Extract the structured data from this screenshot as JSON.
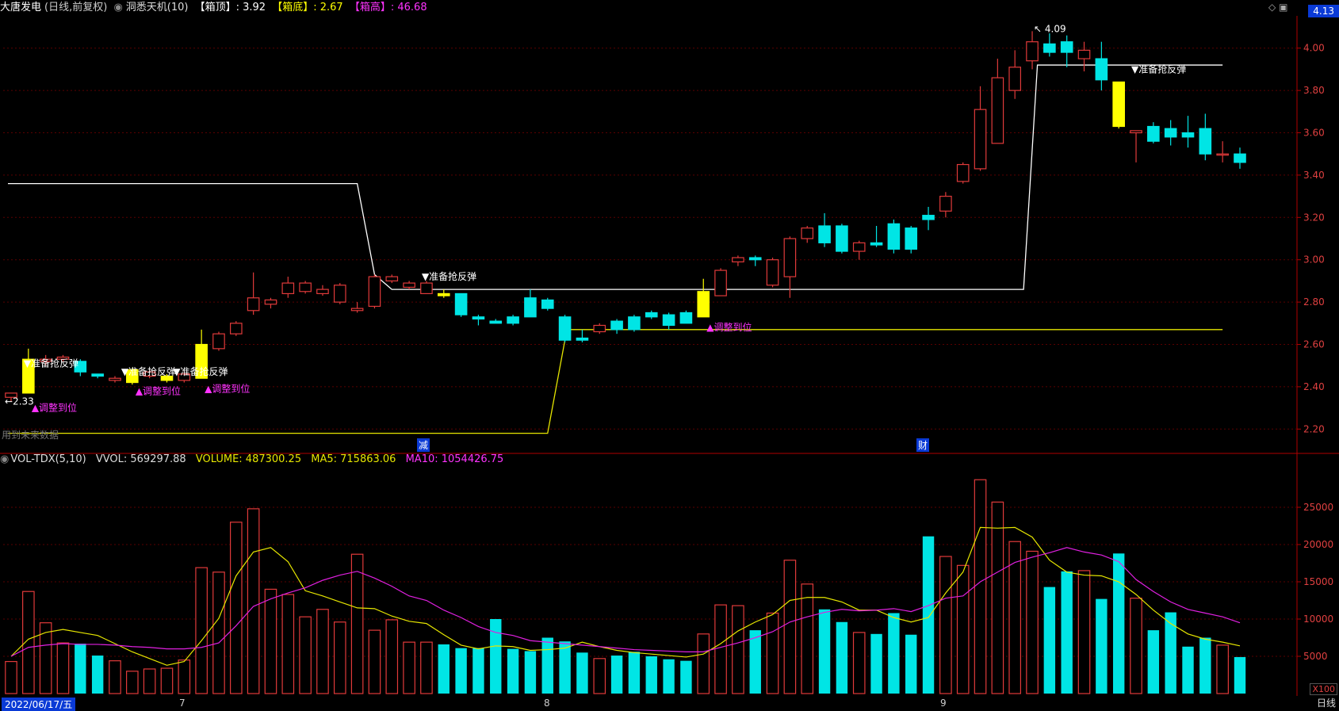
{
  "header": {
    "stock": "大唐发电",
    "mode": "(日线,前复权)",
    "indicator": "洞悉天机(10)",
    "box_top_label": "【箱顶】",
    "box_top_value": ": 3.92",
    "box_bottom_label": "【箱底】",
    "box_bottom_value": ": 2.67",
    "box_height_label": "【箱高】",
    "box_height_value": ": 46.68",
    "top_right_price": "4.13"
  },
  "volume_header": {
    "name": "VOL-TDX(5,10)",
    "vvol": "VVOL: 569297.88",
    "volume": "VOLUME: 487300.25",
    "ma5": "MA5: 715863.06",
    "ma10": "MA10: 1054426.75"
  },
  "footer": {
    "date": "2022/06/17/五",
    "month_7": "7",
    "month_8": "8",
    "month_9": "9",
    "period": "日线",
    "multiplier": "X100",
    "future_note": "用到未来数据",
    "event_1": "减",
    "event_2": "财"
  },
  "colors": {
    "up": "#e03a3a",
    "down": "#00e5e5",
    "signal": "#ffff00",
    "box_line": "#ffffff",
    "bottom_line": "#e6e600",
    "ma5": "#e6e600",
    "ma10": "#e020e0",
    "label_magenta": "#ff33ff",
    "grid": "#5a0000"
  },
  "chart_data": {
    "type": "candlestick",
    "price_axis": {
      "ticks": [
        2.2,
        2.4,
        2.6,
        2.8,
        3.0,
        3.2,
        3.4,
        3.6,
        3.8,
        4.0
      ],
      "ylim": [
        2.13,
        4.13
      ]
    },
    "volume_axis": {
      "ticks": [
        5000,
        10000,
        15000,
        20000,
        25000
      ],
      "ylim": [
        0,
        30000
      ]
    },
    "annotations": {
      "high_label": "4.09",
      "low_label": "2.33",
      "rebound": "▼准备抢反弹",
      "adjust": "▲调整到位"
    },
    "candles": [
      [
        2.35,
        2.37,
        2.33,
        2.37,
        4300,
        0
      ],
      [
        2.37,
        2.53,
        2.37,
        2.58,
        13700,
        1
      ],
      [
        2.52,
        2.53,
        2.5,
        2.55,
        9500,
        0
      ],
      [
        2.53,
        2.54,
        2.52,
        2.55,
        6800,
        0
      ],
      [
        2.52,
        2.47,
        2.45,
        2.53,
        6700,
        0
      ],
      [
        2.46,
        2.45,
        2.44,
        2.46,
        5100,
        0
      ],
      [
        2.43,
        2.44,
        2.42,
        2.45,
        4400,
        1
      ],
      [
        2.42,
        2.48,
        2.41,
        2.49,
        3000,
        1
      ],
      [
        2.45,
        2.47,
        2.44,
        2.48,
        3300,
        0
      ],
      [
        2.43,
        2.45,
        2.42,
        2.46,
        3400,
        1
      ],
      [
        2.43,
        2.46,
        2.42,
        2.47,
        4500,
        0
      ],
      [
        2.44,
        2.6,
        2.44,
        2.67,
        16900,
        1
      ],
      [
        2.58,
        2.65,
        2.57,
        2.66,
        16300,
        1
      ],
      [
        2.65,
        2.7,
        2.64,
        2.71,
        23000,
        1
      ],
      [
        2.76,
        2.82,
        2.74,
        2.94,
        24800,
        1
      ],
      [
        2.79,
        2.81,
        2.77,
        2.82,
        14000,
        0
      ],
      [
        2.84,
        2.89,
        2.82,
        2.92,
        13300,
        0
      ],
      [
        2.85,
        2.89,
        2.84,
        2.9,
        10300,
        1
      ],
      [
        2.84,
        2.86,
        2.83,
        2.88,
        11300,
        0
      ],
      [
        2.8,
        2.88,
        2.79,
        2.89,
        9600,
        0
      ],
      [
        2.76,
        2.77,
        2.75,
        2.8,
        18700,
        1
      ],
      [
        2.78,
        2.92,
        2.77,
        2.93,
        8500,
        1
      ],
      [
        2.9,
        2.92,
        2.89,
        2.93,
        9900,
        0
      ],
      [
        2.87,
        2.89,
        2.86,
        2.9,
        6900,
        0
      ],
      [
        2.84,
        2.89,
        2.84,
        2.9,
        6900,
        1
      ],
      [
        2.84,
        2.83,
        2.82,
        2.86,
        6600,
        1
      ],
      [
        2.84,
        2.74,
        2.73,
        2.84,
        6100,
        0
      ],
      [
        2.73,
        2.72,
        2.69,
        2.74,
        6100,
        0
      ],
      [
        2.71,
        2.7,
        2.7,
        2.72,
        10000,
        1
      ],
      [
        2.73,
        2.7,
        2.69,
        2.74,
        6000,
        0
      ],
      [
        2.82,
        2.73,
        2.73,
        2.86,
        5700,
        0
      ],
      [
        2.81,
        2.77,
        2.76,
        2.82,
        7500,
        0
      ],
      [
        2.73,
        2.62,
        2.61,
        2.74,
        7000,
        0
      ],
      [
        2.63,
        2.62,
        2.61,
        2.67,
        5500,
        0
      ],
      [
        2.66,
        2.69,
        2.65,
        2.7,
        4700,
        0
      ],
      [
        2.71,
        2.67,
        2.65,
        2.72,
        5100,
        0
      ],
      [
        2.73,
        2.67,
        2.66,
        2.74,
        5600,
        0
      ],
      [
        2.75,
        2.73,
        2.72,
        2.76,
        5000,
        0
      ],
      [
        2.74,
        2.69,
        2.67,
        2.75,
        4600,
        0
      ],
      [
        2.75,
        2.7,
        2.7,
        2.76,
        4400,
        1
      ],
      [
        2.73,
        2.85,
        2.73,
        2.91,
        8000,
        1
      ],
      [
        2.83,
        2.95,
        2.83,
        2.96,
        11900,
        1
      ],
      [
        2.99,
        3.01,
        2.97,
        3.02,
        11800,
        1
      ],
      [
        3.01,
        3.0,
        2.97,
        3.02,
        8500,
        0
      ],
      [
        2.88,
        3.0,
        2.87,
        3.01,
        10800,
        1
      ],
      [
        2.92,
        3.1,
        2.82,
        3.11,
        17900,
        1
      ],
      [
        3.1,
        3.15,
        3.08,
        3.16,
        14700,
        0
      ],
      [
        3.16,
        3.08,
        3.06,
        3.22,
        11300,
        1
      ],
      [
        3.16,
        3.04,
        3.03,
        3.17,
        9600,
        1
      ],
      [
        3.04,
        3.08,
        3.0,
        3.09,
        8200,
        1
      ],
      [
        3.08,
        3.07,
        3.06,
        3.16,
        8000,
        0
      ],
      [
        3.17,
        3.05,
        3.03,
        3.19,
        10800,
        1
      ],
      [
        3.15,
        3.05,
        3.03,
        3.16,
        7900,
        0
      ],
      [
        3.21,
        3.19,
        3.14,
        3.25,
        21100,
        1
      ],
      [
        3.23,
        3.3,
        3.2,
        3.32,
        18400,
        1
      ],
      [
        3.37,
        3.45,
        3.36,
        3.46,
        17200,
        1
      ],
      [
        3.43,
        3.71,
        3.42,
        3.82,
        28700,
        1
      ],
      [
        3.55,
        3.86,
        3.56,
        3.95,
        25700,
        1
      ],
      [
        3.8,
        3.91,
        3.76,
        3.99,
        20400,
        1
      ],
      [
        3.94,
        4.03,
        3.9,
        4.08,
        19100,
        1
      ],
      [
        4.02,
        3.98,
        3.96,
        4.07,
        14300,
        0
      ],
      [
        4.03,
        3.98,
        3.91,
        4.06,
        16400,
        0
      ],
      [
        3.95,
        3.99,
        3.89,
        4.03,
        16500,
        1
      ],
      [
        3.95,
        3.85,
        3.8,
        4.03,
        12700,
        1
      ],
      [
        3.84,
        3.63,
        3.62,
        3.84,
        18800,
        0
      ],
      [
        3.6,
        3.61,
        3.46,
        3.61,
        12800,
        0
      ],
      [
        3.63,
        3.56,
        3.55,
        3.65,
        8500,
        0
      ],
      [
        3.62,
        3.58,
        3.54,
        3.66,
        10900,
        0
      ],
      [
        3.6,
        3.58,
        3.53,
        3.68,
        6300,
        0
      ],
      [
        3.62,
        3.5,
        3.47,
        3.69,
        7500,
        0
      ],
      [
        3.5,
        3.5,
        3.46,
        3.56,
        6500,
        0
      ],
      [
        3.5,
        3.46,
        3.43,
        3.53,
        4900,
        0
      ]
    ],
    "signal_bars": [
      1,
      7,
      9,
      11,
      25,
      40,
      64
    ],
    "ma5": [
      5000,
      7300,
      8200,
      8600,
      8200,
      7800,
      6700,
      5600,
      4700,
      3800,
      4300,
      7100,
      10100,
      15800,
      19000,
      19600,
      17700,
      13800,
      13100,
      12300,
      11500,
      11400,
      10400,
      9700,
      9400,
      7900,
      6500,
      6000,
      6400,
      6300,
      5800,
      5900,
      6100,
      6900,
      6300,
      5800,
      5500,
      5300,
      5100,
      4900,
      5300,
      6700,
      8400,
      9600,
      10600,
      12500,
      12900,
      12900,
      12300,
      11200,
      11200,
      10200,
      9600,
      10200,
      13500,
      16300,
      22300,
      22200,
      22300,
      21000,
      17900,
      16300,
      15900,
      15800,
      15000,
      13300,
      11200,
      9400,
      8000,
      7300,
      6900,
      6400
    ],
    "ma10": [
      5000,
      6200,
      6500,
      6700,
      6600,
      6600,
      6500,
      6300,
      6200,
      6000,
      6000,
      6200,
      6800,
      9100,
      11700,
      12700,
      13500,
      14200,
      15200,
      15900,
      16400,
      15500,
      14400,
      13100,
      12500,
      11200,
      10200,
      9000,
      8200,
      7800,
      7100,
      6900,
      6700,
      6500,
      6300,
      6100,
      5900,
      5800,
      5700,
      5600,
      5600,
      6200,
      6800,
      7500,
      8300,
      9600,
      10300,
      10900,
      11300,
      11100,
      11200,
      11400,
      11000,
      11800,
      12800,
      13100,
      15000,
      16300,
      17600,
      18300,
      18900,
      19600,
      19000,
      18600,
      17700,
      15300,
      13700,
      12300,
      11300,
      10800,
      10300,
      9500
    ]
  }
}
